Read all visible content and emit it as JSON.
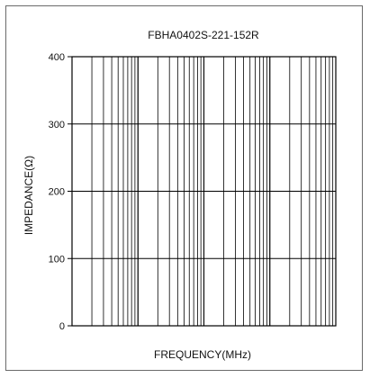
{
  "chart_data": {
    "type": "line",
    "title": "FBHA0402S-221-152R",
    "xlabel": "FREQUENCY(MHz)",
    "ylabel": "IMPEDANCE(Ω)",
    "y_ticks": [
      "0",
      "100",
      "200",
      "300",
      "400"
    ],
    "ylim": [
      0,
      400
    ],
    "x_scale": "log",
    "x_decades": 4,
    "grid": true,
    "legend": "none",
    "series": []
  }
}
